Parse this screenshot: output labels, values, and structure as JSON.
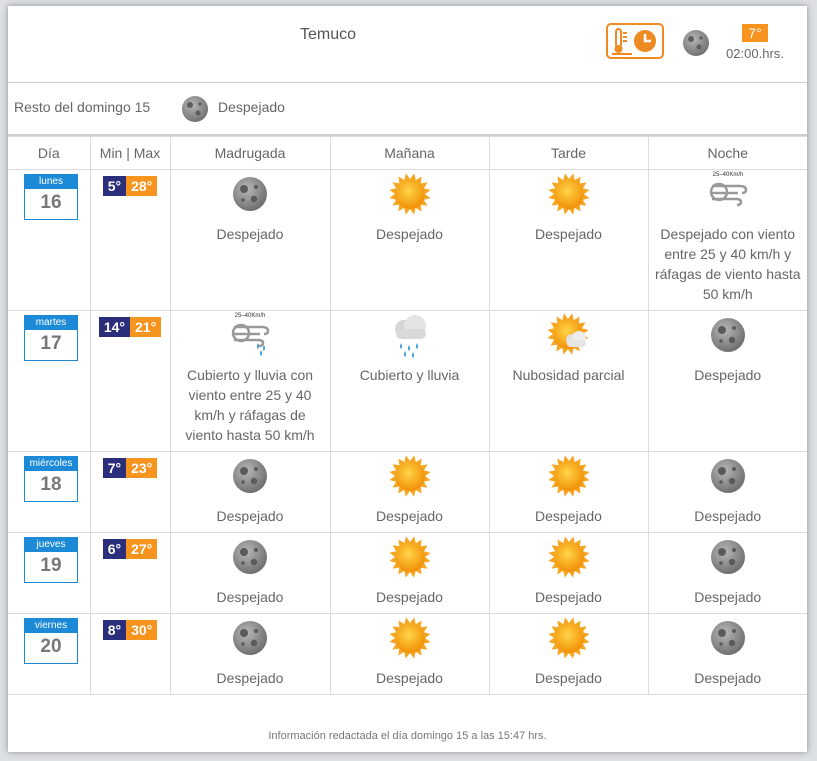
{
  "header": {
    "city": "Temuco",
    "current_temp": "7°",
    "current_time": "02:00.hrs.",
    "current_icon": "moon-clear-icon"
  },
  "resto": {
    "label": "Resto del domingo 15",
    "description": "Despejado",
    "icon": "moon-clear-icon"
  },
  "columns": [
    "Día",
    "Min | Max",
    "Madrugada",
    "Mañana",
    "Tarde",
    "Noche"
  ],
  "days": [
    {
      "name": "lunes",
      "num": "16",
      "min": "5°",
      "max": "28°",
      "periods": [
        {
          "icon": "moon",
          "desc": "Despejado"
        },
        {
          "icon": "sun",
          "desc": "Despejado"
        },
        {
          "icon": "sun",
          "desc": "Despejado"
        },
        {
          "icon": "wind",
          "desc": "Despejado con viento entre 25 y 40 km/h y ráfagas de viento hasta 50 km/h"
        }
      ]
    },
    {
      "name": "martes",
      "num": "17",
      "min": "14°",
      "max": "21°",
      "periods": [
        {
          "icon": "windrain",
          "desc": "Cubierto y lluvia con viento entre 25 y 40 km/h y ráfagas de viento hasta 50 km/h"
        },
        {
          "icon": "rain",
          "desc": "Cubierto y lluvia"
        },
        {
          "icon": "partly",
          "desc": "Nubosidad parcial"
        },
        {
          "icon": "moon",
          "desc": "Despejado"
        }
      ]
    },
    {
      "name": "miércoles",
      "num": "18",
      "min": "7°",
      "max": "23°",
      "periods": [
        {
          "icon": "moon",
          "desc": "Despejado"
        },
        {
          "icon": "sun",
          "desc": "Despejado"
        },
        {
          "icon": "sun",
          "desc": "Despejado"
        },
        {
          "icon": "moon",
          "desc": "Despejado"
        }
      ]
    },
    {
      "name": "jueves",
      "num": "19",
      "min": "6°",
      "max": "27°",
      "periods": [
        {
          "icon": "moon",
          "desc": "Despejado"
        },
        {
          "icon": "sun",
          "desc": "Despejado"
        },
        {
          "icon": "sun",
          "desc": "Despejado"
        },
        {
          "icon": "moon",
          "desc": "Despejado"
        }
      ]
    },
    {
      "name": "viernes",
      "num": "20",
      "min": "8°",
      "max": "30°",
      "periods": [
        {
          "icon": "moon",
          "desc": "Despejado"
        },
        {
          "icon": "sun",
          "desc": "Despejado"
        },
        {
          "icon": "sun",
          "desc": "Despejado"
        },
        {
          "icon": "moon",
          "desc": "Despejado"
        }
      ]
    }
  ],
  "wind_label": "25–40Km/h",
  "footer": "Información redactada el día domingo 15 a las 15:47 hrs.",
  "colors": {
    "min_bg": "#2b2e7a",
    "max_bg": "#f7941d",
    "calendar_blue": "#1c8ad6",
    "accent_orange": "#f08a22"
  }
}
